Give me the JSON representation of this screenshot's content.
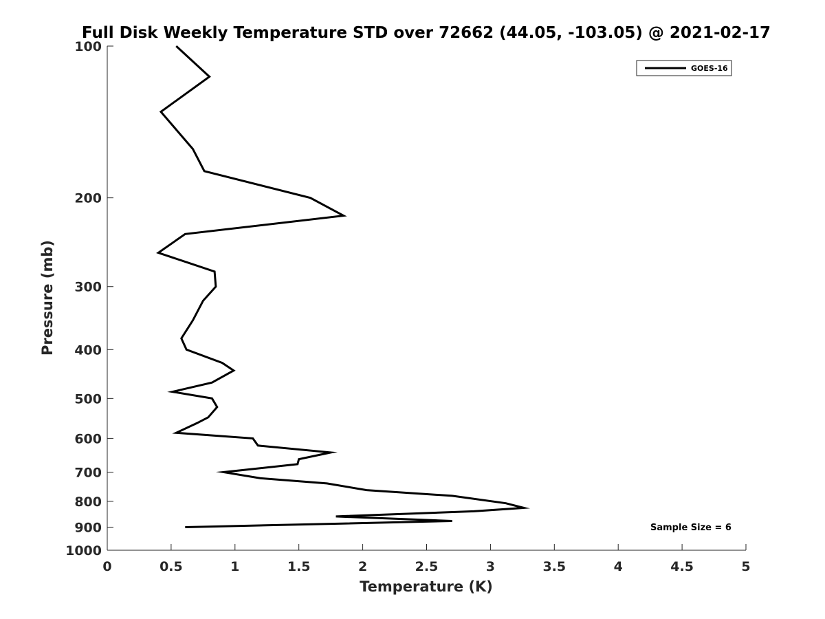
{
  "chart_data": {
    "type": "line",
    "title": "Full Disk Weekly Temperature STD over 72662 (44.05, -103.05) @ 2021-02-17",
    "xlabel": "Temperature (K)",
    "ylabel": "Pressure (mb)",
    "xlim": [
      0,
      5
    ],
    "ylim": [
      100,
      1000
    ],
    "y_scale": "log",
    "y_reversed": true,
    "x_ticks": [
      "0",
      "0.5",
      "1",
      "1.5",
      "2",
      "2.5",
      "3",
      "3.5",
      "4",
      "4.5",
      "5"
    ],
    "y_ticks": [
      "100",
      "200",
      "300",
      "400",
      "500",
      "600",
      "700",
      "800",
      "900",
      "1000"
    ],
    "grid": false,
    "legend": {
      "placement": "top-right",
      "entries": [
        "GOES-16"
      ]
    },
    "annotation": "Sample Size = 6",
    "series": [
      {
        "name": "GOES-16",
        "color": "#000000",
        "points": [
          {
            "t": 0.54,
            "p": 100
          },
          {
            "t": 0.8,
            "p": 115
          },
          {
            "t": 0.42,
            "p": 135
          },
          {
            "t": 0.67,
            "p": 160
          },
          {
            "t": 0.76,
            "p": 177
          },
          {
            "t": 1.59,
            "p": 200
          },
          {
            "t": 1.85,
            "p": 217
          },
          {
            "t": 0.61,
            "p": 236
          },
          {
            "t": 0.4,
            "p": 257
          },
          {
            "t": 0.84,
            "p": 280
          },
          {
            "t": 0.85,
            "p": 300
          },
          {
            "t": 0.75,
            "p": 320
          },
          {
            "t": 0.67,
            "p": 350
          },
          {
            "t": 0.58,
            "p": 380
          },
          {
            "t": 0.62,
            "p": 400
          },
          {
            "t": 0.9,
            "p": 425
          },
          {
            "t": 0.99,
            "p": 440
          },
          {
            "t": 0.82,
            "p": 465
          },
          {
            "t": 0.51,
            "p": 485
          },
          {
            "t": 0.82,
            "p": 500
          },
          {
            "t": 0.86,
            "p": 520
          },
          {
            "t": 0.79,
            "p": 545
          },
          {
            "t": 0.7,
            "p": 560
          },
          {
            "t": 0.54,
            "p": 585
          },
          {
            "t": 1.14,
            "p": 600
          },
          {
            "t": 1.18,
            "p": 620
          },
          {
            "t": 1.75,
            "p": 640
          },
          {
            "t": 1.5,
            "p": 660
          },
          {
            "t": 1.49,
            "p": 675
          },
          {
            "t": 0.91,
            "p": 700
          },
          {
            "t": 1.2,
            "p": 720
          },
          {
            "t": 1.72,
            "p": 737
          },
          {
            "t": 2.03,
            "p": 760
          },
          {
            "t": 2.7,
            "p": 780
          },
          {
            "t": 3.12,
            "p": 807
          },
          {
            "t": 3.26,
            "p": 824
          },
          {
            "t": 2.87,
            "p": 837
          },
          {
            "t": 1.79,
            "p": 857
          },
          {
            "t": 2.7,
            "p": 875
          },
          {
            "t": 0.61,
            "p": 900
          }
        ]
      }
    ]
  }
}
